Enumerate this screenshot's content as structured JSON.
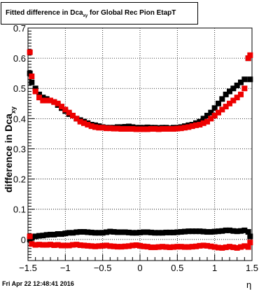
{
  "title": {
    "prefix": "Fitted difference in Dca",
    "subscript": "xy",
    "suffix": " for Global Rec Pion EtapT"
  },
  "footer": "Fri Apr 22 12:48:41 2016",
  "chart_data": {
    "type": "scatter",
    "xlabel": "η",
    "ylabel": "difference in Dca",
    "ylabel_subscript": "xy",
    "xlim": [
      -1.5,
      1.5
    ],
    "ylim": [
      -0.07,
      0.7
    ],
    "x_ticks": [
      -1.5,
      -1,
      -0.5,
      0,
      0.5,
      1,
      1.5
    ],
    "x_tick_labels": [
      "−1.5",
      "−1",
      "−0.5",
      "0",
      "0.5",
      "1",
      "1.5"
    ],
    "y_ticks": [
      0,
      0.1,
      0.2,
      0.3,
      0.4,
      0.5,
      0.6,
      0.7
    ],
    "y_tick_labels": [
      "0",
      "0.1",
      "0.2",
      "0.3",
      "0.4",
      "0.5",
      "0.6",
      "0.7"
    ],
    "grid": true,
    "series": [
      {
        "color": "#000000",
        "x": [
          -1.475,
          -1.45,
          -1.4,
          -1.35,
          -1.3,
          -1.25,
          -1.2,
          -1.15,
          -1.1,
          -1.05,
          -1.0,
          -0.95,
          -0.9,
          -0.85,
          -0.8,
          -0.75,
          -0.7,
          -0.65,
          -0.6,
          -0.55,
          -0.5,
          -0.45,
          -0.4,
          -0.35,
          -0.3,
          -0.25,
          -0.2,
          -0.15,
          -0.1,
          -0.05,
          0.0,
          0.05,
          0.1,
          0.15,
          0.2,
          0.25,
          0.3,
          0.35,
          0.4,
          0.45,
          0.5,
          0.55,
          0.6,
          0.65,
          0.7,
          0.75,
          0.8,
          0.85,
          0.9,
          0.95,
          1.0,
          1.05,
          1.1,
          1.15,
          1.2,
          1.25,
          1.3,
          1.35,
          1.4,
          1.45,
          1.475
        ],
        "y": [
          0.55,
          0.52,
          0.5,
          0.48,
          0.47,
          0.465,
          0.46,
          0.455,
          0.445,
          0.435,
          0.425,
          0.415,
          0.41,
          0.4,
          0.395,
          0.39,
          0.385,
          0.38,
          0.378,
          0.375,
          0.372,
          0.37,
          0.37,
          0.37,
          0.372,
          0.372,
          0.373,
          0.374,
          0.372,
          0.37,
          0.37,
          0.37,
          0.371,
          0.37,
          0.37,
          0.369,
          0.37,
          0.37,
          0.368,
          0.37,
          0.37,
          0.372,
          0.375,
          0.378,
          0.38,
          0.385,
          0.39,
          0.4,
          0.41,
          0.42,
          0.435,
          0.45,
          0.465,
          0.48,
          0.49,
          0.5,
          0.51,
          0.52,
          0.53,
          0.6,
          0.53
        ]
      },
      {
        "color": "#ee0000",
        "x": [
          -1.475,
          -1.45,
          -1.4,
          -1.35,
          -1.3,
          -1.25,
          -1.2,
          -1.15,
          -1.1,
          -1.05,
          -1.0,
          -0.95,
          -0.9,
          -0.85,
          -0.8,
          -0.75,
          -0.7,
          -0.65,
          -0.6,
          -0.55,
          -0.5,
          -0.45,
          -0.4,
          -0.35,
          -0.3,
          -0.25,
          -0.2,
          -0.15,
          -0.1,
          -0.05,
          0.0,
          0.05,
          0.1,
          0.15,
          0.2,
          0.25,
          0.3,
          0.35,
          0.4,
          0.45,
          0.5,
          0.55,
          0.6,
          0.65,
          0.7,
          0.75,
          0.8,
          0.85,
          0.9,
          0.95,
          1.0,
          1.05,
          1.1,
          1.15,
          1.2,
          1.25,
          1.3,
          1.35,
          1.4,
          1.45,
          1.475
        ],
        "y": [
          0.62,
          0.54,
          0.49,
          0.47,
          0.46,
          0.46,
          0.46,
          0.455,
          0.45,
          0.44,
          0.43,
          0.42,
          0.41,
          0.4,
          0.39,
          0.385,
          0.38,
          0.375,
          0.372,
          0.37,
          0.37,
          0.368,
          0.368,
          0.367,
          0.367,
          0.366,
          0.366,
          0.366,
          0.366,
          0.365,
          0.365,
          0.365,
          0.365,
          0.366,
          0.366,
          0.365,
          0.366,
          0.366,
          0.366,
          0.366,
          0.367,
          0.368,
          0.37,
          0.372,
          0.375,
          0.378,
          0.38,
          0.385,
          0.39,
          0.4,
          0.41,
          0.42,
          0.43,
          0.44,
          0.45,
          0.46,
          0.47,
          0.48,
          0.5,
          0.6,
          0.61
        ]
      },
      {
        "color": "#000000",
        "x": [
          -1.475,
          -1.45,
          -1.4,
          -1.35,
          -1.3,
          -1.25,
          -1.2,
          -1.15,
          -1.1,
          -1.05,
          -1.0,
          -0.95,
          -0.9,
          -0.85,
          -0.8,
          -0.75,
          -0.7,
          -0.65,
          -0.6,
          -0.55,
          -0.5,
          -0.45,
          -0.4,
          -0.35,
          -0.3,
          -0.25,
          -0.2,
          -0.15,
          -0.1,
          -0.05,
          0.0,
          0.05,
          0.1,
          0.15,
          0.2,
          0.25,
          0.3,
          0.35,
          0.4,
          0.45,
          0.5,
          0.55,
          0.6,
          0.65,
          0.7,
          0.75,
          0.8,
          0.85,
          0.9,
          0.95,
          1.0,
          1.05,
          1.1,
          1.15,
          1.2,
          1.25,
          1.3,
          1.35,
          1.4,
          1.45,
          1.475
        ],
        "y": [
          0.0,
          0.005,
          0.01,
          0.012,
          0.013,
          0.015,
          0.016,
          0.016,
          0.018,
          0.018,
          0.02,
          0.022,
          0.022,
          0.024,
          0.025,
          0.025,
          0.024,
          0.023,
          0.022,
          0.022,
          0.022,
          0.024,
          0.026,
          0.025,
          0.024,
          0.024,
          0.024,
          0.023,
          0.022,
          0.022,
          0.023,
          0.024,
          0.024,
          0.023,
          0.022,
          0.022,
          0.022,
          0.023,
          0.023,
          0.023,
          0.024,
          0.025,
          0.026,
          0.027,
          0.027,
          0.027,
          0.027,
          0.026,
          0.025,
          0.025,
          0.026,
          0.027,
          0.028,
          0.03,
          0.03,
          0.028,
          0.027,
          0.028,
          0.03,
          0.025,
          0.01
        ]
      },
      {
        "color": "#ee0000",
        "x": [
          -1.475,
          -1.45,
          -1.4,
          -1.35,
          -1.3,
          -1.25,
          -1.2,
          -1.15,
          -1.1,
          -1.05,
          -1.0,
          -0.95,
          -0.9,
          -0.85,
          -0.8,
          -0.75,
          -0.7,
          -0.65,
          -0.6,
          -0.55,
          -0.5,
          -0.45,
          -0.4,
          -0.35,
          -0.3,
          -0.25,
          -0.2,
          -0.15,
          -0.1,
          -0.05,
          0.0,
          0.05,
          0.1,
          0.15,
          0.2,
          0.25,
          0.3,
          0.35,
          0.4,
          0.45,
          0.5,
          0.55,
          0.6,
          0.65,
          0.7,
          0.75,
          0.8,
          0.85,
          0.9,
          0.95,
          1.0,
          1.05,
          1.1,
          1.15,
          1.2,
          1.25,
          1.3,
          1.35,
          1.4,
          1.45,
          1.475
        ],
        "y": [
          0.01,
          -0.015,
          -0.018,
          -0.017,
          -0.018,
          -0.018,
          -0.017,
          -0.019,
          -0.018,
          -0.02,
          -0.02,
          -0.02,
          -0.018,
          -0.017,
          -0.019,
          -0.02,
          -0.021,
          -0.022,
          -0.023,
          -0.022,
          -0.021,
          -0.02,
          -0.022,
          -0.023,
          -0.024,
          -0.024,
          -0.023,
          -0.022,
          -0.02,
          -0.019,
          -0.021,
          -0.023,
          -0.024,
          -0.026,
          -0.026,
          -0.025,
          -0.024,
          -0.025,
          -0.026,
          -0.025,
          -0.024,
          -0.024,
          -0.025,
          -0.025,
          -0.024,
          -0.023,
          -0.021,
          -0.02,
          -0.021,
          -0.023,
          -0.025,
          -0.027,
          -0.028,
          -0.026,
          -0.024,
          -0.026,
          -0.028,
          -0.025,
          -0.022,
          -0.025,
          -0.01
        ]
      }
    ]
  }
}
